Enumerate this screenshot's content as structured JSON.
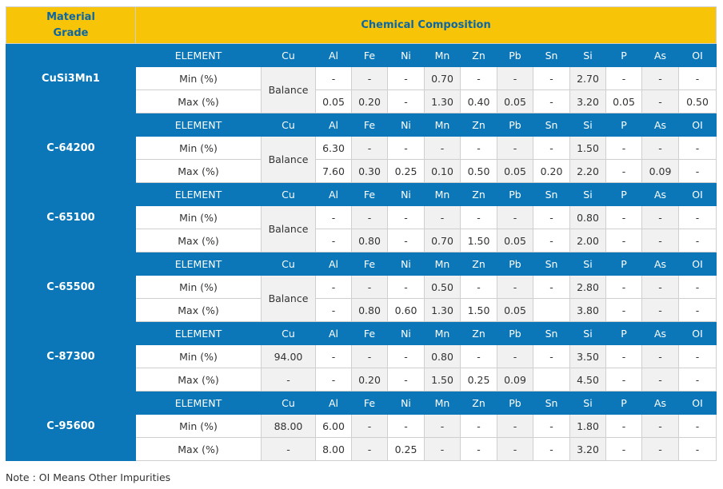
{
  "header": {
    "material_grade": "Material\nGrade",
    "composition": "Chemical Composition"
  },
  "element_label": "ELEMENT",
  "elements": [
    "Cu",
    "Al",
    "Fe",
    "Ni",
    "Mn",
    "Zn",
    "Pb",
    "Sn",
    "Si",
    "P",
    "As",
    "OI"
  ],
  "grades": [
    {
      "name": "CuSi3Mn1",
      "min": {
        "label": "Min (%)",
        "values": [
          "Balance",
          "-",
          "-",
          "-",
          "0.70",
          "-",
          "-",
          "-",
          "2.70",
          "-",
          "-",
          "-"
        ]
      },
      "max": {
        "label": "Max (%)",
        "values": [
          null,
          "0.05",
          "0.20",
          "-",
          "1.30",
          "0.40",
          "0.05",
          "-",
          "3.20",
          "0.05",
          "-",
          "0.50"
        ]
      }
    },
    {
      "name": "C-64200",
      "min": {
        "label": "Min (%)",
        "values": [
          "Balance",
          "6.30",
          "-",
          "-",
          "-",
          "-",
          "-",
          "-",
          "1.50",
          "-",
          "-",
          "-"
        ]
      },
      "max": {
        "label": "Max (%)",
        "values": [
          null,
          "7.60",
          "0.30",
          "0.25",
          "0.10",
          "0.50",
          "0.05",
          "0.20",
          "2.20",
          "-",
          "0.09",
          "-"
        ]
      }
    },
    {
      "name": "C-65100",
      "min": {
        "label": "Min (%)",
        "values": [
          "Balance",
          "-",
          "-",
          "-",
          "-",
          "-",
          "-",
          "-",
          "0.80",
          "-",
          "-",
          "-"
        ]
      },
      "max": {
        "label": "Max (%)",
        "values": [
          null,
          "-",
          "0.80",
          "-",
          "0.70",
          "1.50",
          "0.05",
          "-",
          "2.00",
          "-",
          "-",
          "-"
        ]
      }
    },
    {
      "name": "C-65500",
      "min": {
        "label": "Min (%)",
        "values": [
          "Balance",
          "-",
          "-",
          "-",
          "0.50",
          "-",
          "-",
          "-",
          "2.80",
          "-",
          "-",
          "-"
        ]
      },
      "max": {
        "label": "Max (%)",
        "values": [
          null,
          "-",
          "0.80",
          "0.60",
          "1.30",
          "1.50",
          "0.05",
          "",
          "3.80",
          "-",
          "-",
          "-"
        ]
      }
    },
    {
      "name": "C-87300",
      "min": {
        "label": "Min (%)",
        "values": [
          "94.00",
          "-",
          "-",
          "-",
          "0.80",
          "-",
          "-",
          "-",
          "3.50",
          "-",
          "-",
          "-"
        ]
      },
      "max": {
        "label": "Max (%)",
        "values": [
          "-",
          "-",
          "0.20",
          "-",
          "1.50",
          "0.25",
          "0.09",
          "",
          "4.50",
          "-",
          "-",
          "-"
        ]
      }
    },
    {
      "name": "C-95600",
      "min": {
        "label": "Min (%)",
        "values": [
          "88.00",
          "6.00",
          "-",
          "-",
          "-",
          "-",
          "-",
          "-",
          "1.80",
          "-",
          "-",
          "-"
        ]
      },
      "max": {
        "label": "Max (%)",
        "values": [
          "-",
          "8.00",
          "-",
          "0.25",
          "-",
          "-",
          "-",
          "-",
          "3.20",
          "-",
          "-",
          "-"
        ]
      }
    }
  ],
  "note": "Note : OI Means Other Impurities"
}
